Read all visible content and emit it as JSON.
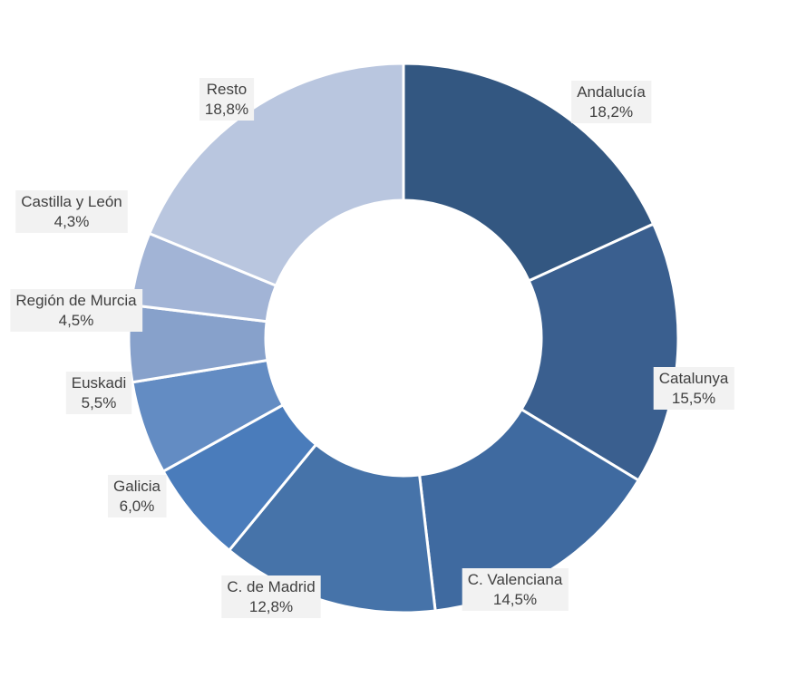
{
  "chart_data": {
    "type": "pie",
    "categories": [
      "Andalucía",
      "Catalunya",
      "C. Valenciana",
      "C. de Madrid",
      "Galicia",
      "Euskadi",
      "Región de Murcia",
      "Castilla y León",
      "Resto"
    ],
    "values": [
      18.2,
      15.5,
      14.5,
      12.8,
      6.0,
      5.5,
      4.5,
      4.3,
      18.8
    ],
    "value_labels": [
      "18,2%",
      "15,5%",
      "14,5%",
      "12,8%",
      "6,0%",
      "5,5%",
      "4,5%",
      "4,3%",
      "18,8%"
    ],
    "colors": [
      "#335781",
      "#3a5f8f",
      "#3f6aa0",
      "#4673a9",
      "#4a7cbb",
      "#638cc3",
      "#87a1cb",
      "#a2b4d6",
      "#b9c6df"
    ],
    "donut": true,
    "legend": "none"
  }
}
